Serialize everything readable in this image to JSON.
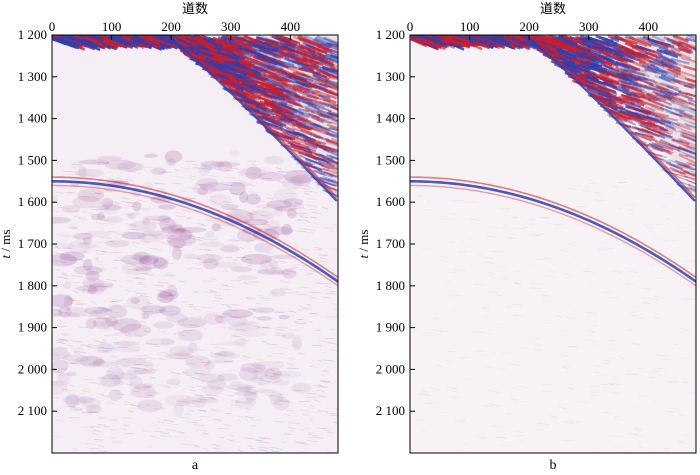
{
  "chart_data": [
    {
      "type": "heatmap",
      "panel_label": "a",
      "xlabel": "道数",
      "ylabel_var": "t",
      "ylabel_unit": " / ms",
      "xlim": [
        0,
        480
      ],
      "ylim": [
        1200,
        2200
      ],
      "x_ticks": [
        0,
        100,
        200,
        300,
        400
      ],
      "x_tick_labels": [
        "0",
        "100",
        "200",
        "300",
        "400"
      ],
      "y_ticks": [
        1200,
        1300,
        1400,
        1500,
        1600,
        1700,
        1800,
        1900,
        2000,
        2100
      ],
      "y_tick_labels": [
        "1 200",
        "1 300",
        "1 400",
        "1 500",
        "1 600",
        "1 700",
        "1 800",
        "1 900",
        "2 000",
        "2 100"
      ],
      "colors": {
        "positive": "#2b3fb0",
        "negative": "#d01c2a",
        "background": "#f5eef4"
      },
      "events": [
        {
          "kind": "direct-wave",
          "trace_start": 0,
          "time_start": 1200,
          "trace_end": 480,
          "time_end": 1600
        },
        {
          "kind": "reflection",
          "trace_start": 0,
          "time_start": 1550,
          "trace_end": 480,
          "time_end": 1790
        }
      ],
      "noise_level": "high"
    },
    {
      "type": "heatmap",
      "panel_label": "b",
      "xlabel": "道数",
      "ylabel_var": "t",
      "ylabel_unit": " / ms",
      "xlim": [
        0,
        480
      ],
      "ylim": [
        1200,
        2200
      ],
      "x_ticks": [
        0,
        100,
        200,
        300,
        400
      ],
      "x_tick_labels": [
        "0",
        "100",
        "200",
        "300",
        "400"
      ],
      "y_ticks": [
        1200,
        1300,
        1400,
        1500,
        1600,
        1700,
        1800,
        1900,
        2000,
        2100
      ],
      "y_tick_labels": [
        "1 200",
        "1 300",
        "1 400",
        "1 500",
        "1 600",
        "1 700",
        "1 800",
        "1 900",
        "2 000",
        "2 100"
      ],
      "colors": {
        "positive": "#2b3fb0",
        "negative": "#d01c2a",
        "background": "#f7f2f5"
      },
      "events": [
        {
          "kind": "direct-wave",
          "trace_start": 0,
          "time_start": 1200,
          "trace_end": 480,
          "time_end": 1600
        },
        {
          "kind": "reflection",
          "trace_start": 0,
          "time_start": 1550,
          "trace_end": 480,
          "time_end": 1790
        }
      ],
      "noise_level": "low"
    }
  ]
}
